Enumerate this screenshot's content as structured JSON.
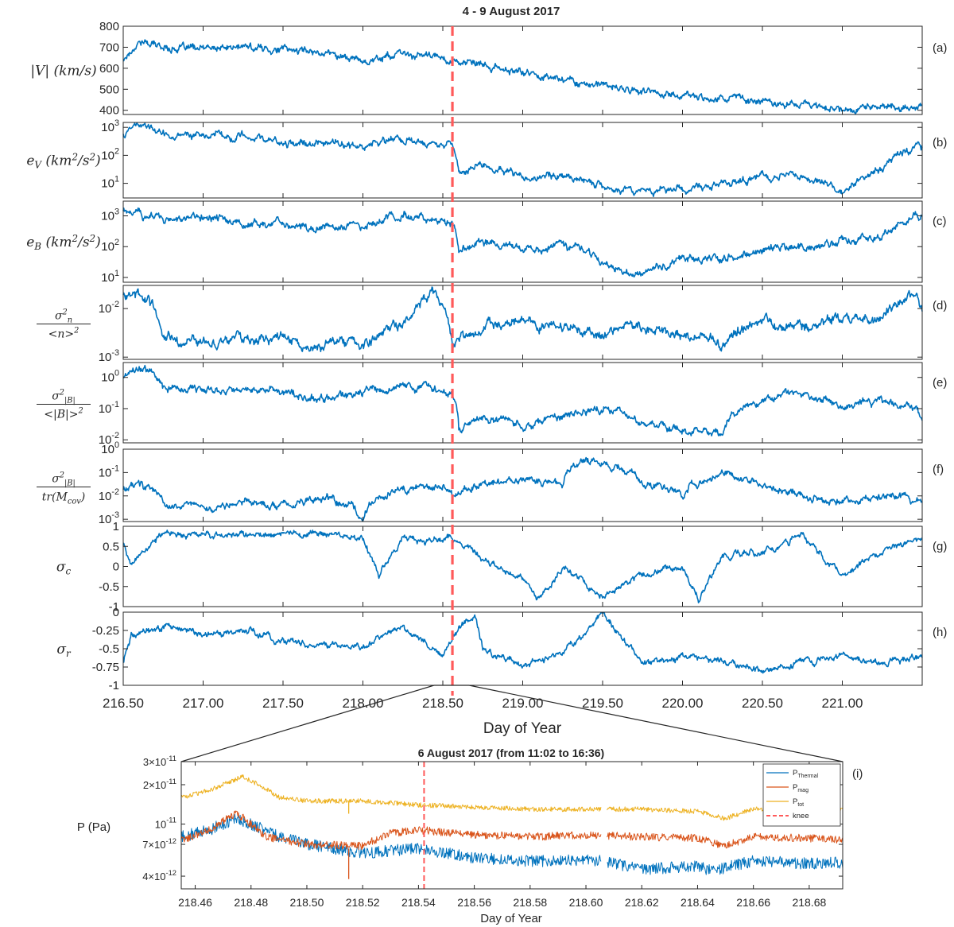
{
  "figure": {
    "title": "4 - 9 August 2017"
  },
  "chart_data": [
    {
      "type": "line",
      "panel": "(a)",
      "ylabel": "|V| (km/s)",
      "xlim": [
        216.5,
        221.5
      ],
      "ylim": [
        380,
        800
      ],
      "yticks": [
        "400",
        "500",
        "600",
        "700",
        "800"
      ],
      "grid": false,
      "series": [
        {
          "color": "#0072BD",
          "x": [
            216.5,
            216.6,
            216.75,
            217.0,
            217.25,
            217.5,
            217.75,
            218.0,
            218.2,
            218.4,
            218.56,
            218.7,
            219.0,
            219.25,
            219.5,
            219.75,
            220.0,
            220.25,
            220.5,
            220.75,
            221.0,
            221.25,
            221.45,
            221.5
          ],
          "y": [
            640,
            730,
            700,
            690,
            700,
            690,
            680,
            635,
            665,
            660,
            640,
            615,
            580,
            550,
            515,
            490,
            470,
            460,
            445,
            430,
            405,
            420,
            410,
            430
          ]
        }
      ]
    },
    {
      "type": "line",
      "panel": "(b)",
      "ylabel": "e_V (km^2/s^2)",
      "yscale": "log",
      "xlim": [
        216.5,
        221.5
      ],
      "ylim": [
        3,
        1500
      ],
      "yticks": [
        "10^1",
        "10^2",
        "10^3"
      ],
      "grid": false,
      "series": [
        {
          "color": "#0072BD",
          "x": [
            216.5,
            216.6,
            216.75,
            217.0,
            217.25,
            217.5,
            217.75,
            218.0,
            218.25,
            218.5,
            218.56,
            218.6,
            218.75,
            219.0,
            219.25,
            219.5,
            219.75,
            220.0,
            220.25,
            220.5,
            220.75,
            221.0,
            221.25,
            221.5
          ],
          "y": [
            600,
            1200,
            600,
            500,
            400,
            300,
            250,
            200,
            400,
            250,
            200,
            30,
            40,
            15,
            20,
            8,
            5,
            6,
            10,
            15,
            20,
            5,
            30,
            200
          ]
        }
      ]
    },
    {
      "type": "line",
      "panel": "(c)",
      "ylabel": "e_B (km^2/s^2)",
      "yscale": "log",
      "xlim": [
        216.5,
        221.5
      ],
      "ylim": [
        7,
        3000
      ],
      "yticks": [
        "10^1",
        "10^2",
        "10^3"
      ],
      "grid": false,
      "series": [
        {
          "color": "#0072BD",
          "x": [
            216.5,
            216.75,
            217.0,
            217.25,
            217.5,
            217.75,
            218.0,
            218.25,
            218.5,
            218.56,
            218.6,
            218.75,
            219.0,
            219.25,
            219.5,
            219.75,
            220.0,
            220.25,
            220.5,
            220.75,
            221.0,
            221.25,
            221.5
          ],
          "y": [
            1500,
            800,
            900,
            500,
            600,
            400,
            500,
            1000,
            700,
            500,
            60,
            150,
            80,
            100,
            30,
            12,
            40,
            50,
            80,
            100,
            150,
            200,
            1000
          ]
        }
      ]
    },
    {
      "type": "line",
      "panel": "(d)",
      "ylabel": "σ²_n / <n>²",
      "yscale": "log",
      "xlim": [
        216.5,
        221.5
      ],
      "ylim": [
        0.0009,
        0.03
      ],
      "yticks": [
        "10^-3",
        "10^-2"
      ],
      "grid": false,
      "series": [
        {
          "color": "#0072BD",
          "x": [
            216.5,
            216.6,
            216.75,
            217.0,
            217.25,
            217.5,
            217.75,
            218.0,
            218.25,
            218.45,
            218.56,
            218.75,
            219.0,
            219.25,
            219.5,
            219.75,
            220.0,
            220.25,
            220.5,
            220.75,
            221.0,
            221.25,
            221.45,
            221.5
          ],
          "y": [
            0.02,
            0.02,
            0.0025,
            0.002,
            0.0025,
            0.002,
            0.0015,
            0.0018,
            0.005,
            0.02,
            0.0015,
            0.004,
            0.006,
            0.004,
            0.003,
            0.004,
            0.003,
            0.002,
            0.005,
            0.004,
            0.006,
            0.006,
            0.02,
            0.01
          ]
        }
      ]
    },
    {
      "type": "line",
      "panel": "(e)",
      "ylabel": "σ²_|B| / <|B|>²",
      "yscale": "log",
      "xlim": [
        216.5,
        221.5
      ],
      "ylim": [
        0.008,
        3
      ],
      "yticks": [
        "10^-2",
        "10^-1",
        "10^0"
      ],
      "grid": false,
      "series": [
        {
          "color": "#0072BD",
          "x": [
            216.5,
            216.6,
            216.75,
            217.0,
            217.25,
            217.5,
            217.75,
            218.0,
            218.25,
            218.5,
            218.56,
            218.6,
            218.75,
            219.0,
            219.25,
            219.5,
            219.75,
            220.0,
            220.25,
            220.5,
            220.75,
            221.0,
            221.25,
            221.5
          ],
          "y": [
            1.0,
            2.0,
            0.5,
            0.4,
            0.5,
            0.3,
            0.2,
            0.3,
            0.5,
            0.4,
            0.3,
            0.02,
            0.05,
            0.03,
            0.05,
            0.1,
            0.03,
            0.02,
            0.015,
            0.2,
            0.3,
            0.1,
            0.2,
            0.05
          ]
        }
      ]
    },
    {
      "type": "line",
      "panel": "(f)",
      "ylabel": "σ²_|B| / tr(M_cov)",
      "yscale": "log",
      "xlim": [
        216.5,
        221.5
      ],
      "ylim": [
        0.0008,
        1
      ],
      "yticks": [
        "10^-3",
        "10^-2",
        "10^-1",
        "10^0"
      ],
      "grid": false,
      "series": [
        {
          "color": "#0072BD",
          "x": [
            216.5,
            216.6,
            216.75,
            217.0,
            217.25,
            217.5,
            217.75,
            218.0,
            218.25,
            218.5,
            218.56,
            218.75,
            219.0,
            219.25,
            219.4,
            219.5,
            219.75,
            220.0,
            220.25,
            220.5,
            220.75,
            221.0,
            221.25,
            221.5
          ],
          "y": [
            0.02,
            0.03,
            0.004,
            0.003,
            0.005,
            0.004,
            0.008,
            0.001,
            0.02,
            0.03,
            0.01,
            0.03,
            0.05,
            0.03,
            0.4,
            0.2,
            0.03,
            0.01,
            0.1,
            0.03,
            0.01,
            0.005,
            0.01,
            0.005
          ]
        }
      ]
    },
    {
      "type": "line",
      "panel": "(g)",
      "ylabel": "σ_c",
      "xlim": [
        216.5,
        221.5
      ],
      "ylim": [
        -1,
        1
      ],
      "yticks": [
        "-1",
        "-0.5",
        "0",
        "0.5",
        "1"
      ],
      "grid": false,
      "series": [
        {
          "color": "#0072BD",
          "x": [
            216.5,
            216.55,
            216.75,
            217.0,
            217.25,
            217.5,
            217.75,
            218.0,
            218.1,
            218.25,
            218.5,
            218.56,
            218.75,
            219.0,
            219.1,
            219.25,
            219.5,
            219.75,
            220.0,
            220.1,
            220.25,
            220.5,
            220.75,
            221.0,
            221.25,
            221.5
          ],
          "y": [
            0.6,
            0.1,
            0.8,
            0.8,
            0.75,
            0.8,
            0.8,
            0.7,
            -0.2,
            0.7,
            0.6,
            0.7,
            0.2,
            -0.3,
            -0.8,
            0.0,
            -0.7,
            -0.2,
            0.0,
            -0.8,
            0.3,
            0.3,
            0.8,
            -0.3,
            0.4,
            0.7
          ]
        }
      ]
    },
    {
      "type": "line",
      "panel": "(h)",
      "ylabel": "σ_r",
      "xlabel": "Day of Year",
      "xlim": [
        216.5,
        221.5
      ],
      "ylim": [
        -1,
        0
      ],
      "yticks": [
        "-1",
        "-0.75",
        "-0.5",
        "-0.25",
        "0"
      ],
      "xticks": [
        "216.50",
        "217.00",
        "217.50",
        "218.00",
        "218.50",
        "219.00",
        "219.50",
        "220.00",
        "220.50",
        "221.00"
      ],
      "grid": false,
      "series": [
        {
          "color": "#0072BD",
          "x": [
            216.5,
            216.55,
            216.75,
            217.0,
            217.25,
            217.5,
            217.75,
            218.0,
            218.25,
            218.5,
            218.56,
            218.7,
            218.75,
            219.0,
            219.25,
            219.5,
            219.75,
            220.0,
            220.25,
            220.5,
            220.75,
            221.0,
            221.25,
            221.5
          ],
          "y": [
            -0.7,
            -0.3,
            -0.2,
            -0.3,
            -0.25,
            -0.4,
            -0.45,
            -0.45,
            -0.2,
            -0.6,
            -0.35,
            0.0,
            -0.5,
            -0.7,
            -0.6,
            0.0,
            -0.7,
            -0.6,
            -0.65,
            -0.8,
            -0.7,
            -0.6,
            -0.7,
            -0.6
          ]
        }
      ]
    },
    {
      "type": "line",
      "panel": "(i)",
      "title": "6 August 2017 (from 11:02 to 16:36)",
      "ylabel": "P (Pa)",
      "xlabel": "Day of Year",
      "yscale": "log",
      "xlim": [
        218.455,
        218.692
      ],
      "ylim": [
        3.2e-12,
        3e-11
      ],
      "yticks": [
        "4×10^-12",
        "7×10^-12",
        "10^-11",
        "2×10^-11",
        "3×10^-11"
      ],
      "xticks": [
        "218.46",
        "218.48",
        "218.50",
        "218.52",
        "218.54",
        "218.56",
        "218.58",
        "218.60",
        "218.62",
        "218.64",
        "218.66",
        "218.68"
      ],
      "grid": false,
      "legend": "top-right",
      "series": [
        {
          "name": "P_Thermal",
          "color": "#0072BD",
          "x": [
            218.455,
            218.465,
            218.475,
            218.49,
            218.5,
            218.52,
            218.54,
            218.56,
            218.58,
            218.605,
            218.62,
            218.64,
            218.645,
            218.66,
            218.68,
            218.692
          ],
          "y": [
            8e-12,
            9e-12,
            1.1e-11,
            8e-12,
            7e-12,
            6e-12,
            6.5e-12,
            5.5e-12,
            5.2e-12,
            5.3e-12,
            4.5e-12,
            4.8e-12,
            4.4e-12,
            5.2e-12,
            5e-12,
            5.1e-12
          ]
        },
        {
          "name": "P_mag",
          "color": "#D95319",
          "x": [
            218.455,
            218.465,
            218.475,
            218.485,
            218.5,
            218.52,
            218.53,
            218.54,
            218.56,
            218.58,
            218.6,
            218.62,
            218.64,
            218.65,
            218.66,
            218.68,
            218.692
          ],
          "y": [
            7.5e-12,
            9e-12,
            1.2e-11,
            8e-12,
            7e-12,
            6.8e-12,
            8.5e-12,
            9e-12,
            8.3e-12,
            8e-12,
            8.2e-12,
            8e-12,
            7.8e-12,
            6.8e-12,
            8e-12,
            7.8e-12,
            7.6e-12
          ]
        },
        {
          "name": "P_tot",
          "color": "#EDB120",
          "x": [
            218.455,
            218.465,
            218.477,
            218.49,
            218.5,
            218.52,
            218.54,
            218.56,
            218.58,
            218.605,
            218.62,
            218.64,
            218.65,
            218.66,
            218.68,
            218.692
          ],
          "y": [
            1.6e-11,
            1.8e-11,
            2.3e-11,
            1.6e-11,
            1.5e-11,
            1.5e-11,
            1.4e-11,
            1.35e-11,
            1.3e-11,
            1.3e-11,
            1.3e-11,
            1.25e-11,
            1.1e-11,
            1.3e-11,
            1.3e-11,
            1.3e-11
          ]
        }
      ],
      "markers": [
        {
          "name": "knee",
          "x": 218.542,
          "color": "#FF5A5A",
          "style": "dashed"
        }
      ]
    }
  ],
  "knee_line": {
    "x": 218.56,
    "color": "#FF5A5A"
  },
  "colors": {
    "line": "#0072BD",
    "axis": "#262626"
  }
}
